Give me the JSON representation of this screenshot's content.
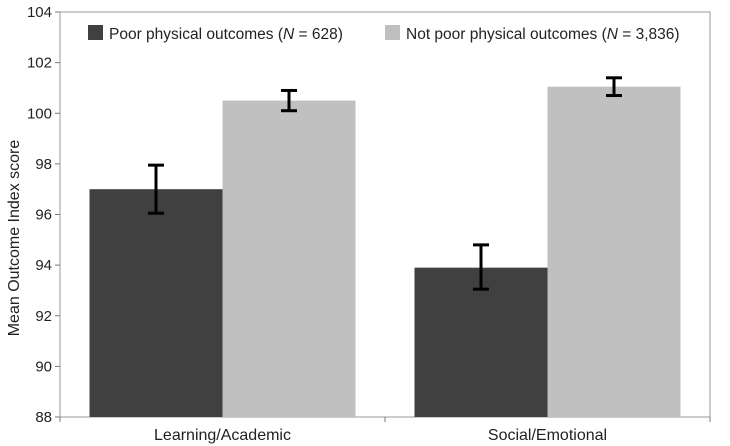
{
  "chart_data": {
    "type": "bar",
    "title": "",
    "xlabel": "",
    "ylabel": "Mean Outcome Index score",
    "ylim": [
      88,
      104
    ],
    "yticks": [
      88,
      90,
      92,
      94,
      96,
      98,
      100,
      102,
      104
    ],
    "categories": [
      "Learning/Academic",
      "Social/Emotional"
    ],
    "series": [
      {
        "name": "Poor physical outcomes",
        "n_label": "N = 628",
        "color": "#404040",
        "values": [
          97.0,
          93.9
        ],
        "error_low": [
          96.05,
          93.05
        ],
        "error_high": [
          97.95,
          94.8
        ]
      },
      {
        "name": "Not poor physical outcomes",
        "n_label": "N = 3,836",
        "color": "#c0c0c0",
        "values": [
          100.5,
          101.05
        ],
        "error_low": [
          100.1,
          100.7
        ],
        "error_high": [
          100.9,
          101.4
        ]
      }
    ],
    "legend_position": "top",
    "grid": false
  }
}
